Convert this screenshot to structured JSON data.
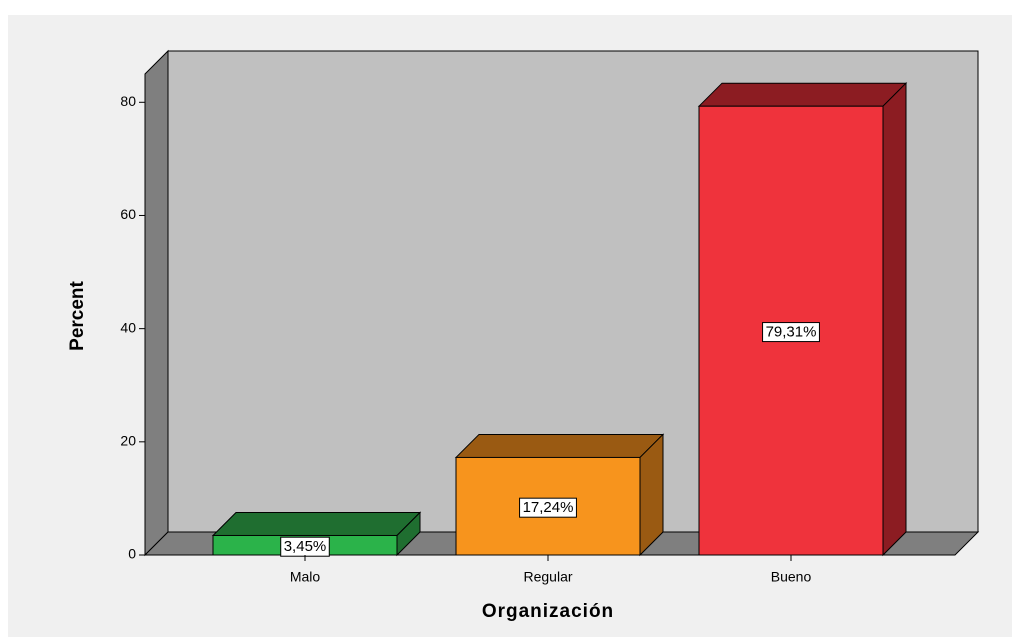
{
  "chart_data": {
    "type": "bar3d",
    "categories": [
      "Malo",
      "Regular",
      "Bueno"
    ],
    "values": [
      3.45,
      17.24,
      79.31
    ],
    "value_labels": [
      "3,45%",
      "17,24%",
      "79,31%"
    ],
    "colors": [
      "#2bb34a",
      "#f7941d",
      "#ef333c"
    ],
    "side_colors": [
      "#1f6e30",
      "#9a5a12",
      "#8c1c22"
    ],
    "x_label": "Organización",
    "y_label": "Percent",
    "ylim": [
      0,
      85
    ],
    "yticks": [
      0,
      20,
      40,
      60,
      80
    ]
  }
}
